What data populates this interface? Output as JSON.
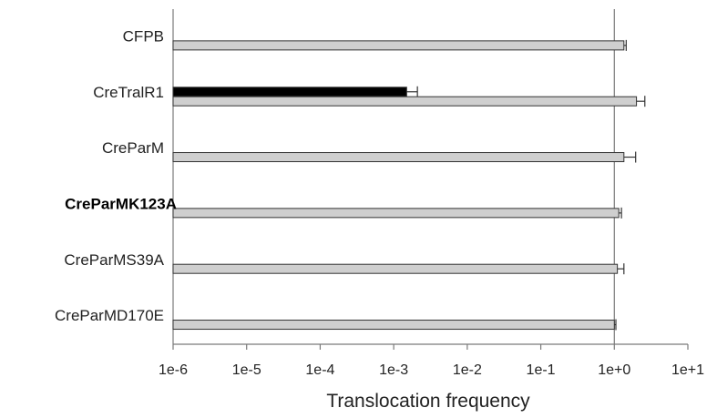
{
  "chart_data": {
    "type": "bar",
    "orientation": "horizontal",
    "x_scale": "log",
    "xlim": [
      1e-06,
      10
    ],
    "xlabel": "Translocation frequency",
    "x_ticks": [
      "1e-6",
      "1e-5",
      "1e-4",
      "1e-3",
      "1e-2",
      "1e-1",
      "1e+0",
      "1e+1"
    ],
    "x_tick_values": [
      1e-06,
      1e-05,
      0.0001,
      0.001,
      0.01,
      0.1,
      1,
      10
    ],
    "reference_line_x": 1,
    "categories": [
      "CFPB",
      "CreTralR1",
      "CreParM",
      "CreParMK123A",
      "CreParMS39A",
      "CreParMD170E"
    ],
    "bold_categories": [
      "CreParMK123A"
    ],
    "series": [
      {
        "color": "#000000",
        "values": [
          null,
          0.0015,
          null,
          null,
          null,
          null
        ],
        "errors": [
          null,
          0.0006,
          null,
          null,
          null,
          null
        ]
      },
      {
        "color": "#cfcfcf",
        "values": [
          1.35,
          2.0,
          1.35,
          1.15,
          1.1,
          1.0
        ],
        "errors": [
          0.1,
          0.6,
          0.6,
          0.1,
          0.25,
          0.05
        ]
      }
    ]
  }
}
